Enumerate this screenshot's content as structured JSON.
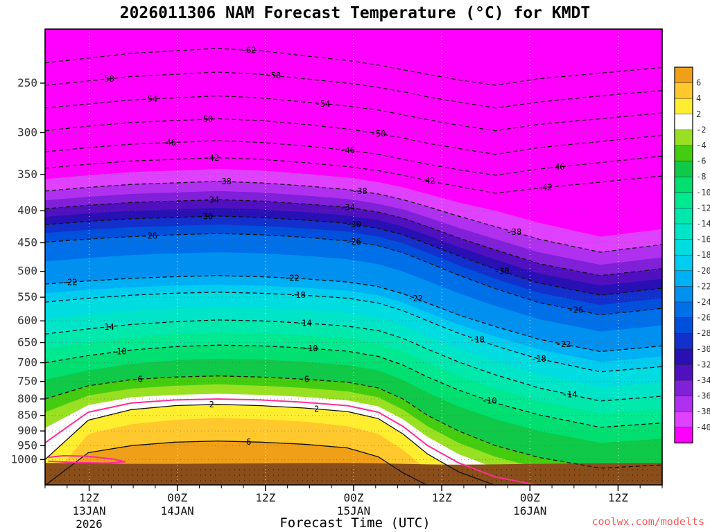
{
  "title": "2026011306 NAM Forecast Temperature (°C) for KMDT",
  "x_axis_title": "Forecast Time (UTC)",
  "watermark": {
    "text": "coolwx.com/modelts",
    "color": "#ff5555"
  },
  "chart_data": {
    "type": "heatmap",
    "subtype": "filled-contour-time-height-cross-section",
    "title": "2026011306 NAM Forecast Temperature (°C) for KMDT",
    "xlabel": "Forecast Time (UTC)",
    "y_unit": "hPa",
    "y_levels": [
      250,
      300,
      350,
      400,
      450,
      500,
      550,
      600,
      650,
      700,
      750,
      800,
      850,
      900,
      950,
      1000
    ],
    "x_major_ticks": [
      {
        "t": 0.0714,
        "zlabel": "12Z",
        "date": "13JAN",
        "year": "2026"
      },
      {
        "t": 0.2143,
        "zlabel": "00Z",
        "date": "14JAN"
      },
      {
        "t": 0.3571,
        "zlabel": "12Z"
      },
      {
        "t": 0.5,
        "zlabel": "00Z",
        "date": "15JAN"
      },
      {
        "t": 0.6429,
        "zlabel": "12Z"
      },
      {
        "t": 0.7857,
        "zlabel": "00Z",
        "date": "16JAN"
      },
      {
        "t": 0.9286,
        "zlabel": "12Z"
      }
    ],
    "total_hours": 84,
    "minor_tick_hours": 3,
    "base_color": "#ff00ff",
    "ground": {
      "color": "#8a4e1a",
      "dot_color": "#3a2008",
      "p": [
        1012,
        1014,
        1016,
        1016,
        1015,
        1014,
        1013,
        1013,
        1014,
        1016,
        1018,
        1019,
        1018,
        1016,
        1014,
        1013
      ]
    },
    "xs": [
      0,
      0.07,
      0.14,
      0.21,
      0.28,
      0.35,
      0.42,
      0.49,
      0.54,
      0.58,
      0.62,
      0.67,
      0.73,
      0.8,
      0.9,
      1.0
    ],
    "contours": [
      {
        "level": -62,
        "style": "dashed",
        "labels": [
          0.33
        ],
        "p": [
          232,
          228,
          224,
          222,
          220,
          222,
          226,
          230,
          234,
          238,
          242,
          247,
          252,
          246,
          241,
          236
        ]
      },
      {
        "level": -58,
        "style": "dashed",
        "labels": [
          0.1,
          0.37
        ],
        "p": [
          252,
          248,
          244,
          242,
          240,
          242,
          246,
          250,
          254,
          258,
          263,
          268,
          274,
          268,
          262,
          257
        ]
      },
      {
        "level": -54,
        "style": "dashed",
        "labels": [
          0.17,
          0.45
        ],
        "p": [
          274,
          270,
          266,
          264,
          262,
          264,
          268,
          272,
          276,
          281,
          286,
          292,
          298,
          291,
          285,
          279
        ]
      },
      {
        "level": -50,
        "style": "dashed",
        "labels": [
          0.26,
          0.54
        ],
        "p": [
          298,
          293,
          289,
          287,
          285,
          287,
          291,
          296,
          301,
          306,
          312,
          318,
          325,
          317,
          310,
          303
        ]
      },
      {
        "level": -46,
        "style": "dashed",
        "labels": [
          0.2,
          0.49,
          0.83
        ],
        "p": [
          322,
          317,
          313,
          311,
          309,
          311,
          315,
          320,
          325,
          331,
          337,
          344,
          351,
          343,
          335,
          327
        ]
      },
      {
        "level": -42,
        "style": "dashed",
        "labels": [
          0.27,
          0.62,
          0.81
        ],
        "p": [
          342,
          337,
          333,
          331,
          329,
          331,
          335,
          340,
          345,
          351,
          358,
          366,
          375,
          368,
          360,
          352
        ]
      },
      {
        "level": -40,
        "style": "none",
        "fill": "#e040ff",
        "p": [
          356,
          351,
          347,
          345,
          343,
          345,
          349,
          354,
          360,
          367,
          376,
          388,
          400,
          418,
          440,
          428
        ]
      },
      {
        "level": -38,
        "style": "dashed",
        "fill": "#b030f0",
        "labels": [
          0.29,
          0.51,
          0.76
        ],
        "p": [
          372,
          367,
          363,
          361,
          359,
          361,
          365,
          370,
          376,
          384,
          394,
          408,
          424,
          444,
          466,
          453
        ]
      },
      {
        "level": -36,
        "style": "none",
        "fill": "#8020d8",
        "p": [
          385,
          380,
          376,
          374,
          372,
          374,
          378,
          383,
          390,
          398,
          410,
          426,
          444,
          466,
          488,
          475
        ]
      },
      {
        "level": -34,
        "style": "dashed",
        "fill": "#5010c0",
        "labels": [
          0.27,
          0.49
        ],
        "p": [
          397,
          392,
          388,
          386,
          384,
          386,
          390,
          395,
          402,
          411,
          424,
          442,
          462,
          486,
          508,
          495
        ]
      },
      {
        "level": -32,
        "style": "none",
        "fill": "#2810b4",
        "p": [
          409,
          404,
          400,
          398,
          396,
          398,
          402,
          407,
          414,
          424,
          438,
          457,
          479,
          504,
          527,
          514
        ]
      },
      {
        "level": -30,
        "style": "dashed",
        "fill": "#1430cc",
        "labels": [
          0.26,
          0.5,
          0.74
        ],
        "p": [
          421,
          416,
          412,
          410,
          408,
          410,
          414,
          419,
          427,
          437,
          452,
          472,
          496,
          522,
          546,
          532
        ]
      },
      {
        "level": -28,
        "style": "none",
        "fill": "#0050dc",
        "p": [
          434,
          429,
          425,
          423,
          421,
          423,
          427,
          432,
          440,
          451,
          467,
          489,
          514,
          541,
          566,
          552
        ]
      },
      {
        "level": -26,
        "style": "dashed",
        "fill": "#0070e8",
        "labels": [
          0.17,
          0.5,
          0.86
        ],
        "p": [
          449,
          444,
          440,
          437,
          435,
          437,
          441,
          447,
          455,
          467,
          484,
          507,
          533,
          561,
          587,
          573
        ]
      },
      {
        "level": -24,
        "style": "none",
        "fill": "#0090f0",
        "p": [
          482,
          476,
          471,
          468,
          466,
          468,
          472,
          478,
          487,
          500,
          518,
          542,
          568,
          596,
          624,
          610
        ]
      },
      {
        "level": -22,
        "style": "dashed",
        "fill": "#00b0f4",
        "labels": [
          0.04,
          0.4,
          0.6,
          0.84
        ],
        "p": [
          524,
          518,
          513,
          510,
          508,
          510,
          514,
          520,
          529,
          543,
          562,
          587,
          613,
          642,
          672,
          658
        ]
      },
      {
        "level": -20,
        "style": "none",
        "fill": "#00ccf0",
        "p": [
          542,
          535,
          530,
          527,
          525,
          527,
          531,
          537,
          546,
          561,
          582,
          608,
          636,
          666,
          698,
          684
        ]
      },
      {
        "level": -18,
        "style": "dashed",
        "fill": "#00dce0",
        "labels": [
          0.41,
          0.7,
          0.8
        ],
        "p": [
          560,
          552,
          546,
          542,
          540,
          542,
          546,
          552,
          562,
          578,
          600,
          628,
          658,
          690,
          724,
          710
        ]
      },
      {
        "level": -16,
        "style": "none",
        "fill": "#00e4c8",
        "p": [
          596,
          586,
          578,
          573,
          570,
          572,
          576,
          583,
          593,
          610,
          634,
          664,
          696,
          730,
          766,
          752
        ]
      },
      {
        "level": -14,
        "style": "dashed",
        "fill": "#00e8ac",
        "labels": [
          0.1,
          0.42,
          0.85
        ],
        "p": [
          630,
          618,
          608,
          602,
          598,
          600,
          605,
          612,
          622,
          640,
          666,
          698,
          732,
          768,
          806,
          792
        ]
      },
      {
        "level": -12,
        "style": "none",
        "fill": "#00e890",
        "p": [
          664,
          650,
          638,
          630,
          626,
          628,
          633,
          640,
          652,
          672,
          700,
          734,
          770,
          806,
          844,
          830
        ]
      },
      {
        "level": -10,
        "style": "dashed",
        "fill": "#00df70",
        "labels": [
          0.12,
          0.43,
          0.72
        ],
        "p": [
          700,
          682,
          668,
          660,
          656,
          658,
          663,
          671,
          684,
          706,
          738,
          774,
          812,
          848,
          888,
          874
        ]
      },
      {
        "level": -8,
        "style": "none",
        "fill": "#10c948",
        "p": [
          745,
          720,
          703,
          694,
          690,
          692,
          698,
          706,
          720,
          746,
          782,
          822,
          862,
          900,
          940,
          926
        ]
      },
      {
        "level": -6,
        "style": "dashed",
        "fill": "#44cc11",
        "labels": [
          0.15,
          0.42
        ],
        "p": [
          800,
          762,
          745,
          738,
          735,
          738,
          744,
          752,
          768,
          800,
          850,
          900,
          950,
          992,
          1032,
          1020
        ]
      },
      {
        "level": -4,
        "style": "none",
        "fill": "#99e022",
        "p": [
          840,
          790,
          770,
          762,
          758,
          762,
          768,
          778,
          795,
          832,
          885,
          940,
          990,
          1032,
          1072,
          1062
        ]
      },
      {
        "level": -2,
        "style": "none",
        "fill": "#ffffff",
        "p": [
          890,
          818,
          795,
          788,
          785,
          788,
          794,
          804,
          822,
          862,
          920,
          980,
          1032,
          1072,
          1100,
          1100
        ]
      },
      {
        "level": 0,
        "style": "pink",
        "p": [
          940,
          840,
          812,
          803,
          800,
          803,
          810,
          820,
          840,
          885,
          950,
          1012,
          1066,
          1100,
          1100,
          1100
        ]
      },
      {
        "level": 2,
        "style": "solid",
        "fill": "#ffee30",
        "labels": [
          0.27,
          0.44
        ],
        "p": [
          1000,
          865,
          832,
          820,
          816,
          820,
          827,
          838,
          860,
          910,
          980,
          1046,
          1100,
          1100,
          1100,
          1100
        ]
      },
      {
        "level": 4,
        "style": "none",
        "fill": "#ffc82c",
        "p": [
          1100,
          910,
          878,
          864,
          858,
          862,
          870,
          884,
          910,
          965,
          1040,
          1100,
          1100,
          1100,
          1100,
          1100
        ]
      },
      {
        "level": 6,
        "style": "solid",
        "fill": "#f0a018",
        "labels": [
          0.33
        ],
        "p": [
          1100,
          975,
          950,
          938,
          934,
          938,
          945,
          958,
          990,
          1050,
          1100,
          1100,
          1100,
          1100,
          1100,
          1100
        ]
      }
    ],
    "pink_loop": {
      "t": [
        0.005,
        0.03,
        0.07,
        0.11,
        0.13,
        0.1,
        0.05,
        0.005
      ],
      "p": [
        992,
        986,
        988,
        998,
        1008,
        1013,
        1011,
        1006
      ]
    },
    "pink_color": "#ff2d96",
    "colorbar": {
      "colors": [
        "#f0a018",
        "#ffc82c",
        "#ffee30",
        "#ffffff",
        "#99e022",
        "#44cc11",
        "#10c948",
        "#00df70",
        "#00e890",
        "#00e8ac",
        "#00e4c8",
        "#00dce0",
        "#00ccf0",
        "#00b0f4",
        "#0090f0",
        "#0070e8",
        "#0050dc",
        "#1430cc",
        "#2810b4",
        "#5010c0",
        "#8020d8",
        "#b030f0",
        "#e040ff",
        "#ff00ff"
      ],
      "labels": [
        "6",
        "4",
        "2",
        "-2",
        "-4",
        "-6",
        "-8",
        "-10",
        "-12",
        "-14",
        "-16",
        "-18",
        "-20",
        "-22",
        "-24",
        "-26",
        "-28",
        "-30",
        "-32",
        "-34",
        "-36",
        "-38",
        "-40"
      ]
    }
  }
}
